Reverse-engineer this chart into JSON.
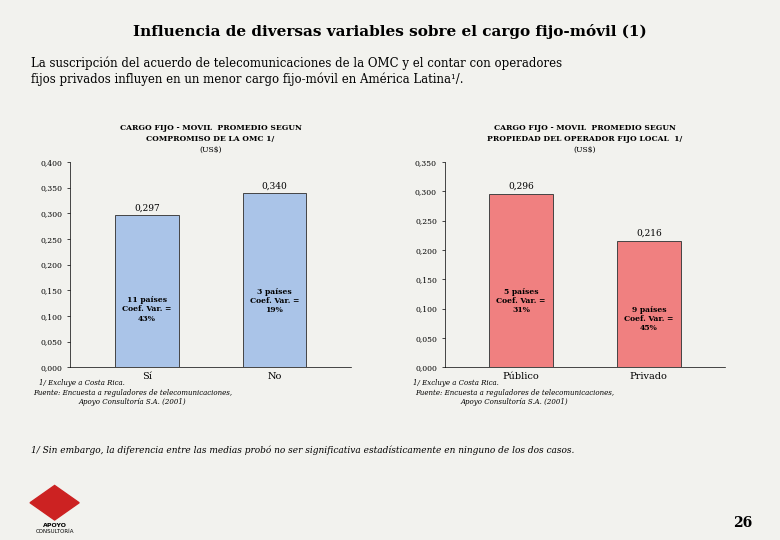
{
  "title": "Influencia de diversas variables sobre el cargo fijo-móvil (1)",
  "subtitle": "La suscripción del acuerdo de telecomunicaciones de la OMC y el contar con operadores\nfijos privados influyen en un menor cargo fijo-móvil en América Latina¹/.",
  "chart1_title_line1": "CARGO FIJO - MOVIL  PROMEDIO SEGUN",
  "chart1_title_line2": "COMPROMISO DE LA OMC 1/",
  "chart1_title_line3": "(US$)",
  "chart1_categories": [
    "Sí",
    "No"
  ],
  "chart1_values": [
    0.297,
    0.34
  ],
  "chart1_bar_labels": [
    "11 países\nCoef. Var. =\n43%",
    "3 países\nCoef. Var. =\n19%"
  ],
  "chart1_value_labels": [
    "0,297",
    "0,340"
  ],
  "chart1_bar_color": "#aac4e8",
  "chart1_bar_edge_color": "#444444",
  "chart1_ylim": [
    0,
    0.4
  ],
  "chart1_yticks": [
    0.0,
    0.05,
    0.1,
    0.15,
    0.2,
    0.25,
    0.3,
    0.35,
    0.4
  ],
  "chart1_ytick_labels": [
    "0,000",
    "0,050",
    "0,100",
    "0,150",
    "0,200",
    "0,250",
    "0,300",
    "0,350",
    "0,400"
  ],
  "chart1_footnote1": "1/ Excluye a Costa Rica.",
  "chart1_footnote2": "Fuente: Encuesta a reguladores de telecomunicaciones,\nApoyo Consultoría S.A. (2001)",
  "chart2_title_line1": "CARGO FIJO - MOVIL  PROMEDIO SEGUN",
  "chart2_title_line2": "PROPIEDAD DEL OPERADOR FIJO LOCAL  1/",
  "chart2_title_line3": "(US$)",
  "chart2_categories": [
    "Público",
    "Privado"
  ],
  "chart2_values": [
    0.296,
    0.216
  ],
  "chart2_bar_labels": [
    "5 países\nCoef. Var. =\n31%",
    "9 países\nCoef. Var. =\n45%"
  ],
  "chart2_value_labels": [
    "0,296",
    "0,216"
  ],
  "chart2_bar_color": "#f08080",
  "chart2_bar_edge_color": "#444444",
  "chart2_ylim": [
    0,
    0.35
  ],
  "chart2_yticks": [
    0.0,
    0.05,
    0.1,
    0.15,
    0.2,
    0.25,
    0.3,
    0.35
  ],
  "chart2_ytick_labels": [
    "0,000",
    "0,050",
    "0,100",
    "0,150",
    "0,200",
    "0,250",
    "0,300",
    "0,350"
  ],
  "chart2_footnote1": "1/ Excluye a Costa Rica.",
  "chart2_footnote2": "Fuente: Encuesta a reguladores de telecomunicaciones,\nApoyo Consultoría S.A. (2001)",
  "bottom_footnote": "1/ Sin embargo, la diferencia entre las medias probó no ser significativa estadísticamente en ninguno de los dos casos.",
  "page_number": "26",
  "bg_color": "#f2f2ee",
  "title_bar_color": "#cc2222"
}
